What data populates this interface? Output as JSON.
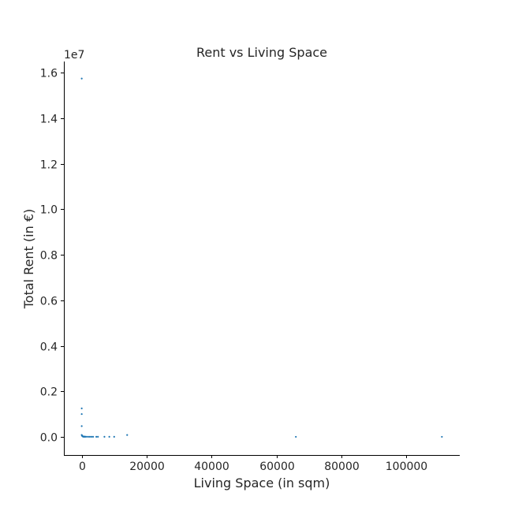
{
  "chart_data": {
    "type": "scatter",
    "title": "Rent vs Living Space",
    "xlabel": "Living Space (in sqm)",
    "ylabel": "Total Rent (in €)",
    "y_scale_label": "1e7",
    "xlim": [
      -5500,
      116500
    ],
    "ylim": [
      -800000,
      16500000
    ],
    "xticks": [
      0,
      20000,
      40000,
      60000,
      80000,
      100000
    ],
    "xtick_labels": [
      "0",
      "20000",
      "40000",
      "60000",
      "80000",
      "100000"
    ],
    "yticks": [
      0,
      2000000,
      4000000,
      6000000,
      8000000,
      10000000,
      12000000,
      14000000,
      16000000
    ],
    "ytick_labels": [
      "0.0",
      "0.2",
      "0.4",
      "0.6",
      "0.8",
      "1.0",
      "1.2",
      "1.4",
      "1.6"
    ],
    "grid": false,
    "marker_color": "#1f77b4",
    "series": [
      {
        "x": [
          0,
          0,
          0,
          0,
          0,
          100,
          200,
          300,
          400,
          500,
          600,
          700,
          800,
          1000,
          1200,
          1500,
          2000,
          2500,
          3000,
          3500,
          4500,
          5000,
          7000,
          8500,
          10000,
          14000,
          66000,
          111000
        ],
        "y": [
          15750000,
          1250000,
          1000000,
          470000,
          80000,
          50000,
          30000,
          20000,
          15000,
          10000,
          8000,
          6000,
          5000,
          5000,
          4000,
          4000,
          3000,
          3000,
          3000,
          2500,
          2500,
          2000,
          2000,
          2000,
          2000,
          80000,
          0,
          0
        ]
      }
    ]
  }
}
